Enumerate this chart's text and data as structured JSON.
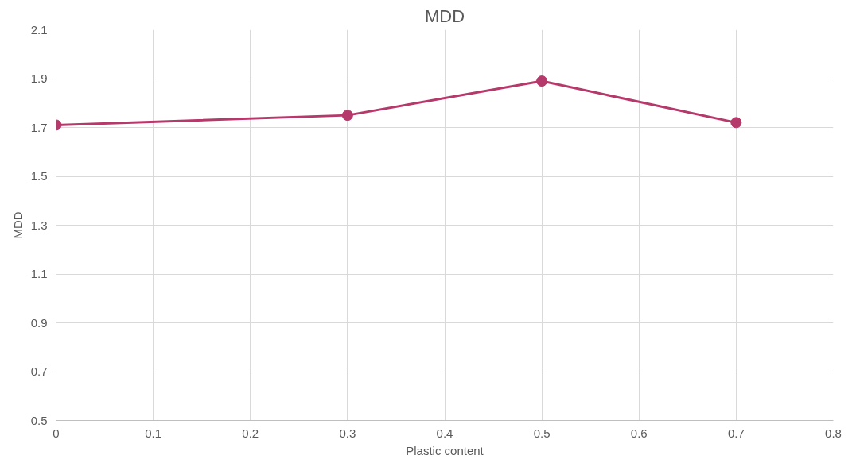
{
  "chart_data": {
    "type": "line",
    "title": "MDD",
    "xlabel": "Plastic content",
    "ylabel": "MDD",
    "x": [
      0,
      0.3,
      0.5,
      0.7
    ],
    "series": [
      {
        "color": "#b5396a",
        "values": [
          1.71,
          1.75,
          1.89,
          1.72
        ]
      }
    ],
    "xlim": [
      0,
      0.8
    ],
    "xticks": [
      0,
      0.1,
      0.2,
      0.3,
      0.4,
      0.5,
      0.6,
      0.7,
      0.8
    ],
    "ylim": [
      0.5,
      2.1
    ],
    "yticks": [
      0.5,
      0.7,
      0.9,
      1.1,
      1.3,
      1.5,
      1.7,
      1.9,
      2.1
    ],
    "grid": true,
    "marker": "circle",
    "line_style": "solid"
  }
}
